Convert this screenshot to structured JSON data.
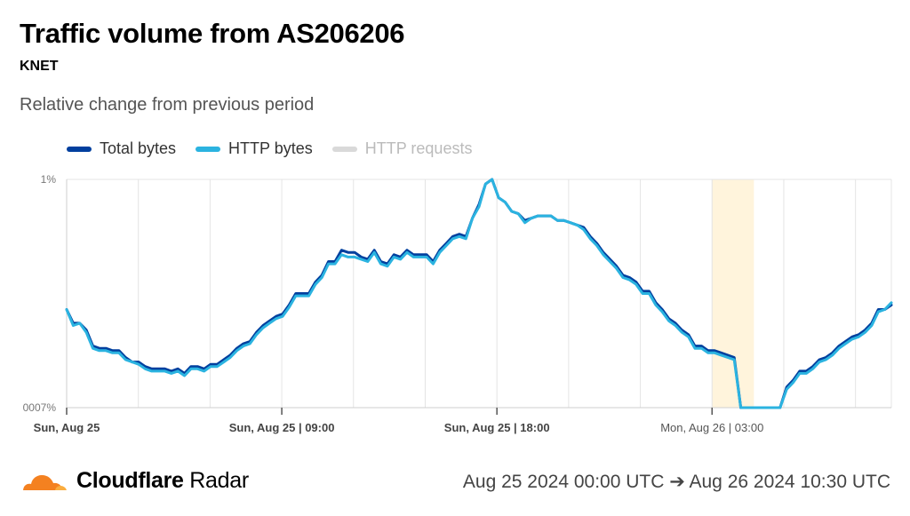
{
  "header": {
    "title": "Traffic volume from AS206206",
    "subtitle": "KNET",
    "description": "Relative change from previous period"
  },
  "legend": [
    {
      "label": "Total bytes",
      "color": "#003f9e",
      "active": true
    },
    {
      "label": "HTTP bytes",
      "color": "#2bb3e0",
      "active": true
    },
    {
      "label": "HTTP requests",
      "color": "#d9d9d9",
      "active": false
    }
  ],
  "footer": {
    "brand_bold": "Cloudflare",
    "brand_light": "Radar",
    "range": "Aug 25 2024 00:00 UTC ➔ Aug 26 2024 10:30 UTC",
    "logo_icon": "cloudflare-cloud-icon",
    "logo_colors": [
      "#f48120",
      "#faad3f"
    ]
  },
  "chart_data": {
    "type": "line",
    "title": "Traffic volume from AS206206",
    "subtitle": "KNET",
    "y_tick_labels": [
      "1%",
      "0007%"
    ],
    "x_tick_labels": [
      {
        "hour": 0,
        "label": "Sun, Aug 25",
        "bold": true
      },
      {
        "hour": 9,
        "label": "Sun, Aug 25 | 09:00",
        "bold": true
      },
      {
        "hour": 18,
        "label": "Sun, Aug 25 | 18:00",
        "bold": true
      },
      {
        "hour": 27,
        "label": "Mon, Aug 26 | 03:00",
        "bold": false
      }
    ],
    "x_range_hours": [
      0,
      34.5
    ],
    "y_range": [
      0,
      1
    ],
    "grid": true,
    "highlight_range_hours": [
      27,
      28.75
    ],
    "highlight_color": "#fff4dc",
    "series": [
      {
        "name": "Total bytes",
        "color": "#003f9e",
        "values": [
          0.43,
          0.37,
          0.37,
          0.34,
          0.27,
          0.26,
          0.26,
          0.25,
          0.25,
          0.22,
          0.2,
          0.2,
          0.18,
          0.17,
          0.17,
          0.17,
          0.16,
          0.17,
          0.15,
          0.18,
          0.18,
          0.17,
          0.19,
          0.19,
          0.21,
          0.23,
          0.26,
          0.28,
          0.29,
          0.33,
          0.36,
          0.38,
          0.4,
          0.41,
          0.45,
          0.5,
          0.5,
          0.5,
          0.55,
          0.58,
          0.64,
          0.64,
          0.69,
          0.68,
          0.68,
          0.66,
          0.65,
          0.69,
          0.64,
          0.63,
          0.67,
          0.66,
          0.69,
          0.67,
          0.67,
          0.67,
          0.64,
          0.69,
          0.72,
          0.75,
          0.76,
          0.75,
          0.83,
          0.89,
          0.98,
          1.0,
          0.92,
          0.9,
          0.86,
          0.85,
          0.82,
          0.83,
          0.84,
          0.84,
          0.84,
          0.82,
          0.82,
          0.81,
          0.8,
          0.79,
          0.75,
          0.72,
          0.68,
          0.65,
          0.62,
          0.58,
          0.57,
          0.55,
          0.51,
          0.51,
          0.46,
          0.43,
          0.39,
          0.37,
          0.34,
          0.32,
          0.27,
          0.27,
          0.25,
          0.25,
          0.24,
          0.23,
          0.22,
          0.0,
          0.0,
          0.0,
          0.0,
          0.0,
          0.0,
          0.0,
          0.09,
          0.12,
          0.16,
          0.16,
          0.18,
          0.21,
          0.22,
          0.24,
          0.27,
          0.29,
          0.31,
          0.32,
          0.34,
          0.37,
          0.43,
          0.43,
          0.45
        ]
      },
      {
        "name": "HTTP bytes",
        "color": "#2bb3e0",
        "values": [
          0.43,
          0.36,
          0.37,
          0.33,
          0.26,
          0.25,
          0.25,
          0.24,
          0.24,
          0.21,
          0.2,
          0.19,
          0.17,
          0.16,
          0.16,
          0.16,
          0.15,
          0.16,
          0.14,
          0.17,
          0.17,
          0.16,
          0.18,
          0.18,
          0.2,
          0.22,
          0.25,
          0.27,
          0.28,
          0.32,
          0.35,
          0.37,
          0.39,
          0.4,
          0.44,
          0.49,
          0.49,
          0.49,
          0.54,
          0.57,
          0.63,
          0.63,
          0.67,
          0.66,
          0.66,
          0.65,
          0.64,
          0.68,
          0.63,
          0.62,
          0.66,
          0.65,
          0.68,
          0.66,
          0.66,
          0.66,
          0.63,
          0.68,
          0.71,
          0.74,
          0.75,
          0.74,
          0.83,
          0.88,
          0.98,
          1.0,
          0.92,
          0.9,
          0.86,
          0.85,
          0.81,
          0.83,
          0.84,
          0.84,
          0.84,
          0.82,
          0.82,
          0.81,
          0.8,
          0.78,
          0.74,
          0.71,
          0.67,
          0.64,
          0.61,
          0.57,
          0.56,
          0.54,
          0.5,
          0.5,
          0.45,
          0.42,
          0.38,
          0.36,
          0.33,
          0.31,
          0.26,
          0.26,
          0.24,
          0.24,
          0.23,
          0.22,
          0.21,
          0.0,
          0.0,
          0.0,
          0.0,
          0.0,
          0.0,
          0.0,
          0.08,
          0.11,
          0.15,
          0.15,
          0.17,
          0.2,
          0.21,
          0.23,
          0.26,
          0.28,
          0.3,
          0.31,
          0.33,
          0.36,
          0.42,
          0.43,
          0.46
        ]
      }
    ]
  }
}
